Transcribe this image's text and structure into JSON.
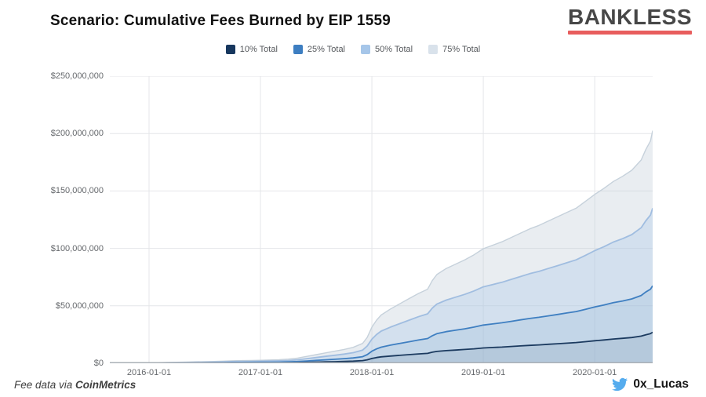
{
  "header": {
    "title": "Scenario: Cumulative Fees Burned by EIP 1559",
    "logo_text": "BANKLESS",
    "logo_underline_color": "#e85d5d"
  },
  "legend": {
    "items": [
      {
        "label": "10% Total",
        "color": "#17375e"
      },
      {
        "label": "25% Total",
        "color": "#3d7ec1"
      },
      {
        "label": "50% Total",
        "color": "#a6c6e9"
      },
      {
        "label": "75% Total",
        "color": "#d9e2eb"
      }
    ]
  },
  "chart_data": {
    "type": "area",
    "title": "Scenario: Cumulative Fees Burned by EIP 1559",
    "xlabel": "",
    "ylabel": "",
    "grid": true,
    "legend_position": "top",
    "x_axis": {
      "tick_labels": [
        "2016-01-01",
        "2017-01-01",
        "2018-01-01",
        "2019-01-01",
        "2020-01-01"
      ],
      "tick_years": [
        2016,
        2017,
        2018,
        2019,
        2020
      ],
      "range_years": [
        2015.648,
        2020.52
      ]
    },
    "y_axis": {
      "tick_labels": [
        "$0",
        "$50,000,000",
        "$100,000,000",
        "$150,000,000",
        "$200,000,000",
        "$250,000,000"
      ],
      "tick_values_musd": [
        0,
        50,
        100,
        150,
        200,
        250
      ],
      "range_musd": [
        0,
        250
      ],
      "unit": "USD"
    },
    "series_model": "overlapping areas; each series value = fraction x total_cumulative_fees_musd at same date",
    "series": [
      {
        "name": "10% Total",
        "fraction": 0.1,
        "line_color": "#1b3a5f",
        "line_width": 1.8,
        "fill_color": "#17375e",
        "fill_alpha": 0.08
      },
      {
        "name": "25% Total",
        "fraction": 0.25,
        "line_color": "#3f7fc1",
        "line_width": 1.8,
        "fill_color": "#3d7ebf",
        "fill_alpha": 0.1
      },
      {
        "name": "50% Total",
        "fraction": 0.5,
        "line_color": "#a0bde0",
        "line_width": 1.8,
        "fill_color": "#a2c4e8",
        "fill_alpha": 0.3
      },
      {
        "name": "75% Total",
        "fraction": 0.75,
        "line_color": "#c6d1db",
        "line_width": 1.4,
        "fill_color": "#c4cfda",
        "fill_alpha": 0.38
      }
    ],
    "total_cumulative_fees_musd": [
      [
        2015.583,
        0.05
      ],
      [
        2015.667,
        0.1
      ],
      [
        2015.75,
        0.18
      ],
      [
        2015.833,
        0.25
      ],
      [
        2015.917,
        0.35
      ],
      [
        2016.0,
        0.5
      ],
      [
        2016.083,
        0.7
      ],
      [
        2016.167,
        1.0
      ],
      [
        2016.25,
        1.2
      ],
      [
        2016.333,
        1.4
      ],
      [
        2016.417,
        1.7
      ],
      [
        2016.5,
        1.9
      ],
      [
        2016.583,
        2.1
      ],
      [
        2016.667,
        2.5
      ],
      [
        2016.75,
        2.9
      ],
      [
        2016.833,
        3.1
      ],
      [
        2016.917,
        3.3
      ],
      [
        2017.0,
        3.5
      ],
      [
        2017.083,
        3.8
      ],
      [
        2017.167,
        4.2
      ],
      [
        2017.25,
        4.8
      ],
      [
        2017.333,
        6.0
      ],
      [
        2017.417,
        8.0
      ],
      [
        2017.5,
        10.0
      ],
      [
        2017.583,
        12.0
      ],
      [
        2017.667,
        14.0
      ],
      [
        2017.75,
        16.0
      ],
      [
        2017.833,
        18.5
      ],
      [
        2017.917,
        23.0
      ],
      [
        2017.958,
        30.0
      ],
      [
        2018.0,
        42.0
      ],
      [
        2018.042,
        50.0
      ],
      [
        2018.083,
        56.0
      ],
      [
        2018.167,
        63.0
      ],
      [
        2018.25,
        69.0
      ],
      [
        2018.333,
        75.0
      ],
      [
        2018.417,
        81.0
      ],
      [
        2018.5,
        86.0
      ],
      [
        2018.542,
        96.0
      ],
      [
        2018.583,
        103.0
      ],
      [
        2018.667,
        110.0
      ],
      [
        2018.75,
        115.0
      ],
      [
        2018.833,
        120.0
      ],
      [
        2018.917,
        126.0
      ],
      [
        2019.0,
        133.0
      ],
      [
        2019.083,
        137.0
      ],
      [
        2019.167,
        141.0
      ],
      [
        2019.25,
        146.0
      ],
      [
        2019.333,
        151.0
      ],
      [
        2019.417,
        156.0
      ],
      [
        2019.5,
        160.0
      ],
      [
        2019.583,
        165.0
      ],
      [
        2019.667,
        170.0
      ],
      [
        2019.75,
        175.0
      ],
      [
        2019.833,
        180.0
      ],
      [
        2019.917,
        188.0
      ],
      [
        2020.0,
        196.0
      ],
      [
        2020.083,
        203.0
      ],
      [
        2020.167,
        211.0
      ],
      [
        2020.25,
        217.0
      ],
      [
        2020.333,
        224.0
      ],
      [
        2020.417,
        236.0
      ],
      [
        2020.458,
        248.0
      ],
      [
        2020.5,
        258.0
      ],
      [
        2020.54,
        270.0
      ]
    ],
    "grid_color": "#e4e6e9",
    "baseline_color": "#aab0b6"
  },
  "footer": {
    "source_prefix": "Fee data via ",
    "source_name": "CoinMetrics",
    "twitter_handle": "0x_Lucas",
    "twitter_color": "#55acee"
  }
}
